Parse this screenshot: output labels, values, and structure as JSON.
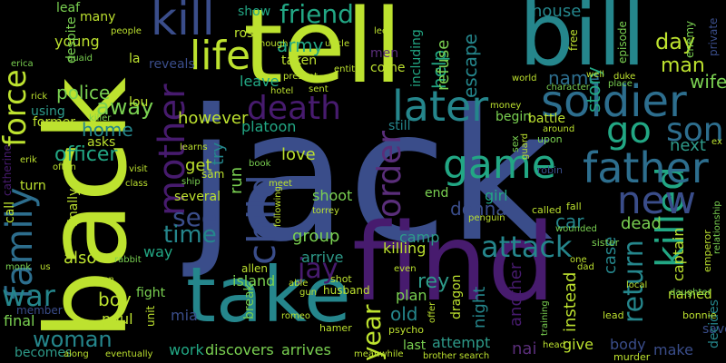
{
  "words": [
    {
      "id": "jack",
      "text": "jack",
      "color": "#3a4d8a"
    },
    {
      "id": "back",
      "text": "back",
      "color": "#bde22f"
    },
    {
      "id": "find",
      "text": "find",
      "color": "#471b6e"
    },
    {
      "id": "tell",
      "text": "tell",
      "color": "#bde22f"
    },
    {
      "id": "bill",
      "text": "bill",
      "color": "#25868c"
    },
    {
      "id": "take",
      "text": "take",
      "color": "#25868c"
    },
    {
      "id": "kill",
      "text": "kill",
      "color": "#3a4d8a"
    },
    {
      "id": "soldier",
      "text": "soldier",
      "color": "#2d6e8e"
    },
    {
      "id": "death",
      "text": "death",
      "color": "#471b6e"
    },
    {
      "id": "later",
      "text": "later",
      "color": "#25868c"
    },
    {
      "id": "life",
      "text": "life",
      "color": "#bde22f"
    },
    {
      "id": "friend",
      "text": "friend",
      "color": "#22a784"
    },
    {
      "id": "killed",
      "text": "killed",
      "color": "#22a784"
    },
    {
      "id": "father",
      "text": "father",
      "color": "#2d6e8e"
    },
    {
      "id": "family",
      "text": "family",
      "color": "#2d6e8e"
    },
    {
      "id": "force",
      "text": "force",
      "color": "#bde22f"
    },
    {
      "id": "mother",
      "text": "mother",
      "color": "#471b6e"
    },
    {
      "id": "child",
      "text": "child",
      "color": "#3a4d8a"
    },
    {
      "id": "game",
      "text": "game",
      "color": "#22a784"
    },
    {
      "id": "order",
      "text": "order",
      "color": "#5a2e7a"
    },
    {
      "id": "new",
      "text": "new",
      "color": "#3a4d8a"
    },
    {
      "id": "son",
      "text": "son",
      "color": "#2d6e8e"
    },
    {
      "id": "go",
      "text": "go",
      "color": "#22a784"
    },
    {
      "id": "war",
      "text": "war",
      "color": "#25868c"
    },
    {
      "id": "attack",
      "text": "attack",
      "color": "#25868c"
    },
    {
      "id": "return",
      "text": "return",
      "color": "#25868c"
    },
    {
      "id": "jay",
      "text": "jay",
      "color": "#471b6e"
    },
    {
      "id": "year",
      "text": "year",
      "color": "#bde22f"
    },
    {
      "id": "woman",
      "text": "woman",
      "color": "#25868c"
    },
    {
      "id": "see",
      "text": "see",
      "color": "#3a4d8a"
    },
    {
      "id": "time",
      "text": "time",
      "color": "#25868c"
    },
    {
      "id": "away",
      "text": "away",
      "color": "#7ad151"
    },
    {
      "id": "police",
      "text": "police",
      "color": "#7ad151"
    },
    {
      "id": "officer",
      "text": "officer",
      "color": "#22a784"
    },
    {
      "id": "home",
      "text": "home",
      "color": "#25868c"
    },
    {
      "id": "however",
      "text": "however",
      "color": "#bde22f"
    },
    {
      "id": "army",
      "text": "army",
      "color": "#22a784"
    },
    {
      "id": "help",
      "text": "help",
      "color": "#22a784"
    },
    {
      "id": "escape",
      "text": "escape",
      "color": "#25868c"
    },
    {
      "id": "refuse",
      "text": "refuse",
      "color": "#7ad151"
    },
    {
      "id": "name",
      "text": "name",
      "color": "#2d6e8e"
    },
    {
      "id": "story",
      "text": "story",
      "color": "#22a784"
    },
    {
      "id": "day",
      "text": "day",
      "color": "#bde22f"
    },
    {
      "id": "man",
      "text": "man",
      "color": "#bde22f"
    },
    {
      "id": "wife",
      "text": "wife",
      "color": "#7ad151"
    },
    {
      "id": "next",
      "text": "next",
      "color": "#2e9b8a"
    },
    {
      "id": "house",
      "text": "house",
      "color": "#25868c"
    },
    {
      "id": "captain",
      "text": "captain",
      "color": "#bde22f"
    },
    {
      "id": "case",
      "text": "case",
      "color": "#25868c"
    },
    {
      "id": "car",
      "text": "car",
      "color": "#25868c"
    },
    {
      "id": "dead",
      "text": "dead",
      "color": "#7ad151"
    },
    {
      "id": "girl",
      "text": "girl",
      "color": "#22a784"
    },
    {
      "id": "donna",
      "text": "donna",
      "color": "#3a4d8a"
    },
    {
      "id": "love",
      "text": "love",
      "color": "#bde22f"
    },
    {
      "id": "get",
      "text": "get",
      "color": "#bde22f"
    },
    {
      "id": "run",
      "text": "run",
      "color": "#7ad151"
    },
    {
      "id": "try",
      "text": "try",
      "color": "#25868c"
    },
    {
      "id": "boy",
      "text": "boy",
      "color": "#bde22f"
    },
    {
      "id": "also",
      "text": "also",
      "color": "#bde22f"
    },
    {
      "id": "group",
      "text": "group",
      "color": "#7ad151"
    },
    {
      "id": "arrive",
      "text": "arrive",
      "color": "#2e9b8a"
    },
    {
      "id": "shoot",
      "text": "shoot",
      "color": "#7ad151"
    },
    {
      "id": "camp",
      "text": "camp",
      "color": "#2e9b8a"
    },
    {
      "id": "killing",
      "text": "killing",
      "color": "#bde22f"
    },
    {
      "id": "island",
      "text": "island",
      "color": "#7ad151"
    },
    {
      "id": "rey",
      "text": "rey",
      "color": "#2e9b8a"
    },
    {
      "id": "night",
      "text": "night",
      "color": "#25868c"
    },
    {
      "id": "plan",
      "text": "plan",
      "color": "#7ad151"
    },
    {
      "id": "old",
      "text": "old",
      "color": "#25868c"
    },
    {
      "id": "mia",
      "text": "mia",
      "color": "#3a4d8a"
    },
    {
      "id": "paul",
      "text": "paul",
      "color": "#bde22f"
    },
    {
      "id": "work",
      "text": "work",
      "color": "#22a784"
    },
    {
      "id": "discovers",
      "text": "discovers",
      "color": "#7ad151"
    },
    {
      "id": "arrives",
      "text": "arrives",
      "color": "#7ad151"
    },
    {
      "id": "attempt",
      "text": "attempt",
      "color": "#2e9b8a"
    },
    {
      "id": "last",
      "text": "last",
      "color": "#7ad151"
    },
    {
      "id": "give",
      "text": "give",
      "color": "#bde22f"
    },
    {
      "id": "body",
      "text": "body",
      "color": "#3a4d8a"
    },
    {
      "id": "make",
      "text": "make",
      "color": "#3a4d8a"
    },
    {
      "id": "named",
      "text": "named",
      "color": "#bde22f"
    },
    {
      "id": "save",
      "text": "save",
      "color": "#3a4d8a"
    },
    {
      "id": "decides",
      "text": "decides",
      "color": "#25868c"
    },
    {
      "id": "instead",
      "text": "instead",
      "color": "#bde22f"
    },
    {
      "id": "another",
      "text": "another",
      "color": "#471b6e"
    },
    {
      "id": "dragon",
      "text": "dragon",
      "color": "#bde22f"
    },
    {
      "id": "nai",
      "text": "nai",
      "color": "#5a2e7a"
    },
    {
      "id": "final",
      "text": "final",
      "color": "#7ad151"
    },
    {
      "id": "becomes",
      "text": "becomes",
      "color": "#2e9b8a"
    },
    {
      "id": "fight",
      "text": "fight",
      "color": "#7ad151"
    },
    {
      "id": "way",
      "text": "way",
      "color": "#22a784"
    },
    {
      "id": "leave",
      "text": "leave",
      "color": "#22a784"
    },
    {
      "id": "platoon",
      "text": "platoon",
      "color": "#22a784"
    },
    {
      "id": "taken",
      "text": "taken",
      "color": "#bde22f"
    },
    {
      "id": "rose",
      "text": "rose",
      "color": "#bde22f"
    },
    {
      "id": "show",
      "text": "show",
      "color": "#22a784"
    },
    {
      "id": "reveals",
      "text": "reveals",
      "color": "#3a4d8a"
    },
    {
      "id": "come",
      "text": "come",
      "color": "#bde22f"
    },
    {
      "id": "including",
      "text": "including",
      "color": "#22a784"
    },
    {
      "id": "begin",
      "text": "begin",
      "color": "#7ad151"
    },
    {
      "id": "still",
      "text": "still",
      "color": "#25868c"
    },
    {
      "id": "end",
      "text": "end",
      "color": "#7ad151"
    },
    {
      "id": "leaf",
      "text": "leaf",
      "color": "#7ad151"
    },
    {
      "id": "many",
      "text": "many",
      "color": "#bde22f"
    },
    {
      "id": "young",
      "text": "young",
      "color": "#bde22f"
    },
    {
      "id": "despite",
      "text": "despite",
      "color": "#7ad151"
    },
    {
      "id": "using",
      "text": "using",
      "color": "#2e9b8a"
    },
    {
      "id": "former",
      "text": "former",
      "color": "#bde22f"
    },
    {
      "id": "catherine",
      "text": "catherine",
      "color": "#471b6e"
    },
    {
      "id": "turn",
      "text": "turn",
      "color": "#bde22f"
    },
    {
      "id": "call",
      "text": "call",
      "color": "#bde22f"
    },
    {
      "id": "finally",
      "text": "finally",
      "color": "#bde22f"
    },
    {
      "id": "member",
      "text": "member",
      "color": "#3a4d8a"
    },
    {
      "id": "asks",
      "text": "asks",
      "color": "#bde22f"
    },
    {
      "id": "lou",
      "text": "lou",
      "color": "#bde22f"
    },
    {
      "id": "la",
      "text": "la",
      "color": "#bde22f"
    },
    {
      "id": "sam",
      "text": "sam",
      "color": "#bde22f"
    },
    {
      "id": "several",
      "text": "several",
      "color": "#bde22f"
    },
    {
      "id": "unit",
      "text": "unit",
      "color": "#bde22f"
    },
    {
      "id": "allen",
      "text": "allen",
      "color": "#bde22f"
    },
    {
      "id": "break",
      "text": "break",
      "color": "#7ad151"
    },
    {
      "id": "husband",
      "text": "husband",
      "color": "#bde22f"
    },
    {
      "id": "shot",
      "text": "shot",
      "color": "#bde22f"
    },
    {
      "id": "hamer",
      "text": "hamer",
      "color": "#bde22f"
    },
    {
      "id": "psycho",
      "text": "psycho",
      "color": "#bde22f"
    },
    {
      "id": "romeo",
      "text": "romeo",
      "color": "#bde22f"
    },
    {
      "id": "head",
      "text": "head",
      "color": "#bde22f"
    },
    {
      "id": "murder",
      "text": "murder",
      "color": "#bde22f"
    },
    {
      "id": "local",
      "text": "local",
      "color": "#bde22f"
    },
    {
      "id": "lead",
      "text": "lead",
      "color": "#bde22f"
    },
    {
      "id": "bonnie",
      "text": "bonnie",
      "color": "#bde22f"
    },
    {
      "id": "daughter",
      "text": "daughter",
      "color": "#7ad151"
    },
    {
      "id": "dad",
      "text": "dad",
      "color": "#bde22f"
    },
    {
      "id": "sister",
      "text": "sister",
      "color": "#7ad151"
    },
    {
      "id": "fall",
      "text": "fall",
      "color": "#bde22f"
    },
    {
      "id": "called",
      "text": "called",
      "color": "#bde22f"
    },
    {
      "id": "robin",
      "text": "robin",
      "color": "#3a4d8a"
    },
    {
      "id": "battle",
      "text": "battle",
      "color": "#bde22f"
    },
    {
      "id": "upon",
      "text": "upon",
      "color": "#7ad151"
    },
    {
      "id": "around",
      "text": "around",
      "color": "#bde22f"
    },
    {
      "id": "sex",
      "text": "sex",
      "color": "#7ad151"
    },
    {
      "id": "guard",
      "text": "guard",
      "color": "#bde22f"
    },
    {
      "id": "free",
      "text": "free",
      "color": "#bde22f"
    },
    {
      "id": "episode",
      "text": "episode",
      "color": "#7ad151"
    },
    {
      "id": "private",
      "text": "private",
      "color": "#3a4d8a"
    },
    {
      "id": "enemy",
      "text": "enemy",
      "color": "#7ad151"
    },
    {
      "id": "duke",
      "text": "duke",
      "color": "#bde22f"
    },
    {
      "id": "place",
      "text": "place",
      "color": "#7ad151"
    },
    {
      "id": "well",
      "text": "well",
      "color": "#bde22f"
    },
    {
      "id": "character",
      "text": "character",
      "color": "#7ad151"
    },
    {
      "id": "emperor",
      "text": "emperor",
      "color": "#bde22f"
    },
    {
      "id": "relationship",
      "text": "relationship",
      "color": "#7ad151"
    },
    {
      "id": "people",
      "text": "people",
      "color": "#bde22f"
    },
    {
      "id": "hotel",
      "text": "hotel",
      "color": "#bde22f"
    },
    {
      "id": "present",
      "text": "present",
      "color": "#bde22f"
    },
    {
      "id": "sent",
      "text": "sent",
      "color": "#bde22f"
    },
    {
      "id": "uncle",
      "text": "uncle",
      "color": "#bde22f"
    },
    {
      "id": "entity",
      "text": "entity",
      "color": "#bde22f"
    },
    {
      "id": "men",
      "text": "men",
      "color": "#5a2e7a"
    },
    {
      "id": "led",
      "text": "led",
      "color": "#bde22f"
    },
    {
      "id": "though",
      "text": "though",
      "color": "#bde22f"
    },
    {
      "id": "world",
      "text": "world",
      "color": "#bde22f"
    },
    {
      "id": "money",
      "text": "money",
      "color": "#bde22f"
    },
    {
      "id": "erica",
      "text": "erica",
      "color": "#7ad151"
    },
    {
      "id": "quaid",
      "text": "quaid",
      "color": "#7ad151"
    },
    {
      "id": "rick",
      "text": "rick",
      "color": "#bde22f"
    },
    {
      "id": "killer",
      "text": "killer",
      "color": "#7ad151"
    },
    {
      "id": "erik",
      "text": "erik",
      "color": "#bde22f"
    },
    {
      "id": "often",
      "text": "often",
      "color": "#bde22f"
    },
    {
      "id": "visit",
      "text": "visit",
      "color": "#bde22f"
    },
    {
      "id": "learns",
      "text": "learns",
      "color": "#bde22f"
    },
    {
      "id": "book",
      "text": "book",
      "color": "#7ad151"
    },
    {
      "id": "class",
      "text": "class",
      "color": "#bde22f"
    },
    {
      "id": "ship",
      "text": "ship",
      "color": "#7ad151"
    },
    {
      "id": "meet",
      "text": "meet",
      "color": "#bde22f"
    },
    {
      "id": "torrey",
      "text": "torrey",
      "color": "#bde22f"
    },
    {
      "id": "following",
      "text": "following",
      "color": "#bde22f"
    },
    {
      "id": "penguin",
      "text": "penguin",
      "color": "#bde22f"
    },
    {
      "id": "wounded",
      "text": "wounded",
      "color": "#7ad151"
    },
    {
      "id": "monk",
      "text": "monk",
      "color": "#7ad151"
    },
    {
      "id": "us",
      "text": "us",
      "color": "#bde22f"
    },
    {
      "id": "soon",
      "text": "soon",
      "color": "#bde22f"
    },
    {
      "id": "rabbit",
      "text": "rabbit",
      "color": "#7ad151"
    },
    {
      "id": "able",
      "text": "able",
      "color": "#bde22f"
    },
    {
      "id": "gun",
      "text": "gun",
      "color": "#bde22f"
    },
    {
      "id": "even",
      "text": "even",
      "color": "#bde22f"
    },
    {
      "id": "offer",
      "text": "offer",
      "color": "#bde22f"
    },
    {
      "id": "one",
      "text": "one",
      "color": "#bde22f"
    },
    {
      "id": "training",
      "text": "training",
      "color": "#7ad151"
    },
    {
      "id": "brother",
      "text": "brother",
      "color": "#bde22f"
    },
    {
      "id": "search",
      "text": "search",
      "color": "#bde22f"
    },
    {
      "id": "meanwhile",
      "text": "meanwhile",
      "color": "#bde22f"
    },
    {
      "id": "along",
      "text": "along",
      "color": "#bde22f"
    },
    {
      "id": "eventually",
      "text": "eventually",
      "color": "#bde22f"
    },
    {
      "id": "ex",
      "text": "ex",
      "color": "#bde22f"
    }
  ]
}
